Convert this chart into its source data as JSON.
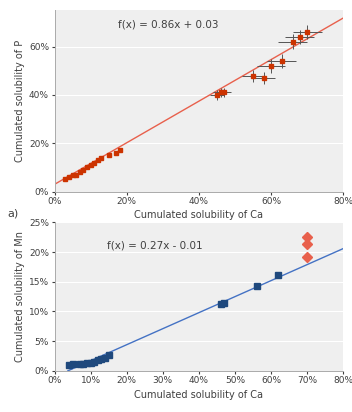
{
  "plot_a": {
    "xlabel": "Cumulated solubility of Ca",
    "ylabel": "Cumulated solubility of P",
    "equation": "f(x) = 0.86x + 0.03",
    "slope": 0.86,
    "intercept": 0.03,
    "line_color": "#E8604C",
    "marker_color": "#CC3300",
    "ecolor": "#555555",
    "xlim": [
      0,
      0.8
    ],
    "ylim": [
      0,
      0.75
    ],
    "xticks": [
      0,
      0.2,
      0.4,
      0.6,
      0.8
    ],
    "yticks": [
      0,
      0.2,
      0.4,
      0.6
    ],
    "label_a": "a)",
    "data_x": [
      0.03,
      0.04,
      0.05,
      0.06,
      0.07,
      0.08,
      0.09,
      0.1,
      0.11,
      0.12,
      0.13,
      0.15,
      0.17,
      0.18,
      0.45,
      0.46,
      0.47,
      0.55,
      0.58,
      0.6,
      0.63,
      0.66,
      0.68,
      0.7
    ],
    "data_y": [
      0.05,
      0.06,
      0.07,
      0.07,
      0.08,
      0.09,
      0.1,
      0.11,
      0.12,
      0.13,
      0.14,
      0.15,
      0.16,
      0.17,
      0.4,
      0.41,
      0.41,
      0.48,
      0.47,
      0.52,
      0.54,
      0.62,
      0.64,
      0.66
    ],
    "xerr": [
      0.004,
      0.004,
      0.004,
      0.004,
      0.004,
      0.004,
      0.004,
      0.004,
      0.004,
      0.004,
      0.004,
      0.004,
      0.004,
      0.004,
      0.02,
      0.02,
      0.02,
      0.03,
      0.03,
      0.04,
      0.04,
      0.04,
      0.04,
      0.04
    ],
    "yerr": [
      0.004,
      0.004,
      0.004,
      0.004,
      0.004,
      0.004,
      0.004,
      0.004,
      0.004,
      0.004,
      0.004,
      0.004,
      0.004,
      0.004,
      0.02,
      0.02,
      0.02,
      0.025,
      0.025,
      0.03,
      0.03,
      0.03,
      0.03,
      0.03
    ]
  },
  "plot_b": {
    "xlabel": "Cumulated solubility of Ca",
    "ylabel": "Cumulated solubility of Mn",
    "equation": "f(x) = 0.27x - 0.01",
    "slope": 0.27,
    "intercept": -0.01,
    "line_color": "#4472C4",
    "marker_blue_color": "#1F497D",
    "marker_orange_color": "#E8604C",
    "xlim": [
      0,
      0.8
    ],
    "ylim": [
      0,
      0.25
    ],
    "xticks": [
      0,
      0.1,
      0.2,
      0.3,
      0.4,
      0.5,
      0.6,
      0.7,
      0.8
    ],
    "yticks": [
      0,
      0.05,
      0.1,
      0.15,
      0.2,
      0.25
    ],
    "blue_x": [
      0.04,
      0.05,
      0.07,
      0.08,
      0.09,
      0.1,
      0.11,
      0.12,
      0.13,
      0.14,
      0.15,
      0.46,
      0.47,
      0.56,
      0.62
    ],
    "blue_y": [
      0.01,
      0.011,
      0.011,
      0.012,
      0.013,
      0.013,
      0.015,
      0.018,
      0.02,
      0.022,
      0.027,
      0.113,
      0.114,
      0.143,
      0.161
    ],
    "orange_x": [
      0.7,
      0.7,
      0.7
    ],
    "orange_y": [
      0.192,
      0.213,
      0.225
    ]
  },
  "bg_color": "#EFEFEF",
  "font_color": "#404040",
  "label_a": "a)"
}
